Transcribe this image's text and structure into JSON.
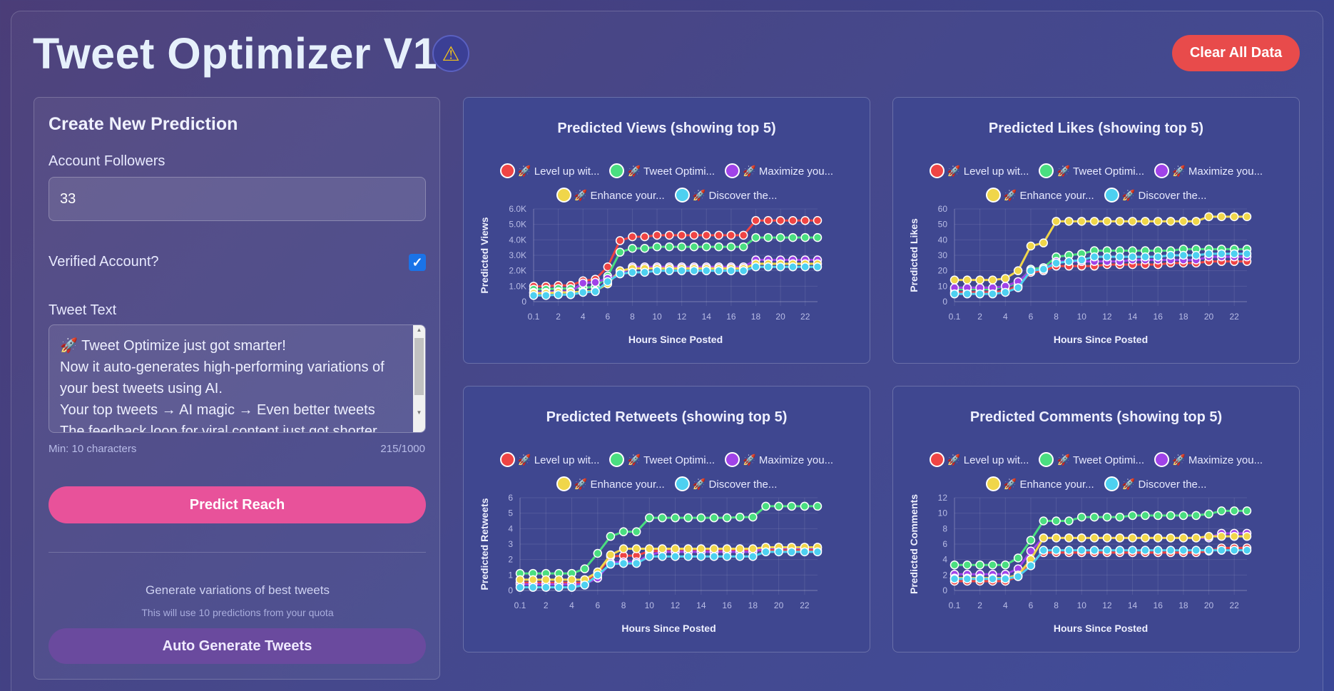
{
  "header": {
    "title": "Tweet Optimizer V1",
    "warning_icon": "warning-icon",
    "clear_label": "Clear All Data"
  },
  "form": {
    "heading": "Create New Prediction",
    "followers_label": "Account Followers",
    "followers_value": "33",
    "verified_label": "Verified Account?",
    "verified_checked": true,
    "tweet_label": "Tweet Text",
    "tweet_value": "🚀 Tweet Optimize just got smarter!\nNow it auto-generates high-performing variations of your best tweets using AI.\nYour top tweets → AI magic → Even better tweets\nThe feedback loop for viral content just got shorter.",
    "min_hint": "Min: 10 characters",
    "char_count": "215/1000",
    "predict_label": "Predict Reach",
    "generate_title": "Generate variations of best tweets",
    "generate_sub": "This will use 10 predictions from your quota",
    "auto_label": "Auto Generate Tweets"
  },
  "colors": {
    "red": "#ef4444",
    "green": "#4ade80",
    "purple": "#a043e8",
    "yellow": "#f0d64a",
    "cyan": "#4dd0f0",
    "predict": "#e8529a",
    "clear": "#e84b4b",
    "auto": "#6a4a9e"
  },
  "chart_data": [
    {
      "type": "line",
      "title": "Predicted Views (showing top 5)",
      "xlabel": "Hours Since Posted",
      "ylabel": "Predicted Views",
      "ylim": [
        0,
        6000
      ],
      "yticks": [
        "0",
        "1.0K",
        "2.0K",
        "3.0K",
        "4.0K",
        "5.0K",
        "6.0K"
      ],
      "categories": [
        "0.1",
        "1",
        "2",
        "3",
        "4",
        "5",
        "6",
        "7",
        "8",
        "9",
        "10",
        "11",
        "12",
        "13",
        "14",
        "15",
        "16",
        "17",
        "18",
        "19",
        "20",
        "21",
        "22",
        "23"
      ],
      "xtick_labels": [
        "0.1",
        "2",
        "4",
        "6",
        "8",
        "10",
        "12",
        "14",
        "16",
        "18",
        "20",
        "22"
      ],
      "grid": true,
      "legend": "top",
      "series": [
        {
          "name": "🚀 Level up wit...",
          "color": "#ef4444",
          "values": [
            1000,
            1000,
            1050,
            1050,
            1350,
            1450,
            2250,
            3950,
            4200,
            4200,
            4300,
            4300,
            4300,
            4300,
            4300,
            4300,
            4300,
            4300,
            5250,
            5250,
            5250,
            5250,
            5250,
            5250
          ]
        },
        {
          "name": "🚀 Tweet Optimi...",
          "color": "#4ade80",
          "values": [
            800,
            800,
            850,
            850,
            900,
            950,
            1650,
            3200,
            3450,
            3450,
            3550,
            3550,
            3550,
            3550,
            3550,
            3550,
            3550,
            3550,
            4150,
            4150,
            4150,
            4150,
            4150,
            4150
          ]
        },
        {
          "name": "🚀 Maximize you...",
          "color": "#a043e8",
          "values": [
            600,
            600,
            650,
            650,
            1200,
            1250,
            1500,
            1800,
            2250,
            2250,
            2250,
            2250,
            2250,
            2250,
            2250,
            2250,
            2250,
            2250,
            2700,
            2700,
            2700,
            2700,
            2700,
            2700
          ]
        },
        {
          "name": "🚀 Enhance your...",
          "color": "#f0d64a",
          "values": [
            550,
            550,
            600,
            600,
            650,
            700,
            1150,
            2000,
            2150,
            2150,
            2150,
            2150,
            2150,
            2150,
            2150,
            2150,
            2150,
            2150,
            2450,
            2450,
            2450,
            2450,
            2450,
            2450
          ]
        },
        {
          "name": "🚀 Discover the...",
          "color": "#4dd0f0",
          "values": [
            400,
            400,
            450,
            450,
            600,
            650,
            1300,
            1800,
            1900,
            1900,
            2000,
            2000,
            2000,
            2000,
            2000,
            2000,
            2000,
            2000,
            2250,
            2250,
            2250,
            2250,
            2250,
            2250
          ]
        }
      ]
    },
    {
      "type": "line",
      "title": "Predicted Likes (showing top 5)",
      "xlabel": "Hours Since Posted",
      "ylabel": "Predicted Likes",
      "ylim": [
        0,
        60
      ],
      "yticks": [
        "0",
        "10",
        "20",
        "30",
        "40",
        "50",
        "60"
      ],
      "categories": [
        "0.1",
        "1",
        "2",
        "3",
        "4",
        "5",
        "6",
        "7",
        "8",
        "9",
        "10",
        "11",
        "12",
        "13",
        "14",
        "15",
        "16",
        "17",
        "18",
        "19",
        "20",
        "21",
        "22",
        "23"
      ],
      "xtick_labels": [
        "0.1",
        "2",
        "4",
        "6",
        "8",
        "10",
        "12",
        "14",
        "16",
        "18",
        "20",
        "22"
      ],
      "grid": true,
      "legend": "top",
      "series": [
        {
          "name": "🚀 Level up wit...",
          "color": "#ef4444",
          "values": [
            6,
            6,
            6,
            6,
            7,
            10,
            19,
            20,
            23,
            23,
            23,
            23,
            24,
            24,
            24,
            24,
            24,
            25,
            25,
            25,
            26,
            26,
            26,
            26
          ]
        },
        {
          "name": "🚀 Tweet Optimi...",
          "color": "#4ade80",
          "values": [
            8,
            8,
            8,
            8,
            10,
            12,
            21,
            22,
            29,
            30,
            31,
            33,
            33,
            33,
            33,
            33,
            33,
            33,
            34,
            34,
            34,
            34,
            34,
            34
          ]
        },
        {
          "name": "🚀 Maximize you...",
          "color": "#a043e8",
          "values": [
            9,
            9,
            9,
            9,
            10,
            13,
            20,
            21,
            26,
            26,
            26,
            26,
            26,
            26,
            27,
            27,
            27,
            27,
            27,
            27,
            29,
            29,
            29,
            29
          ]
        },
        {
          "name": "🚀 Enhance your...",
          "color": "#f0d64a",
          "values": [
            14,
            14,
            14,
            14,
            15,
            20,
            36,
            38,
            52,
            52,
            52,
            52,
            52,
            52,
            52,
            52,
            52,
            52,
            52,
            52,
            55,
            55,
            55,
            55
          ]
        },
        {
          "name": "🚀 Discover the...",
          "color": "#4dd0f0",
          "values": [
            5,
            5,
            5,
            5,
            6,
            9,
            20,
            21,
            25,
            26,
            27,
            29,
            29,
            29,
            29,
            29,
            29,
            30,
            30,
            30,
            31,
            31,
            31,
            31
          ]
        }
      ]
    },
    {
      "type": "line",
      "title": "Predicted Retweets (showing top 5)",
      "xlabel": "Hours Since Posted",
      "ylabel": "Predicted Retweets",
      "ylim": [
        0,
        6
      ],
      "yticks": [
        "0",
        "1",
        "2",
        "3",
        "4",
        "5",
        "6"
      ],
      "categories": [
        "0.1",
        "1",
        "2",
        "3",
        "4",
        "5",
        "6",
        "7",
        "8",
        "9",
        "10",
        "11",
        "12",
        "13",
        "14",
        "15",
        "16",
        "17",
        "18",
        "19",
        "20",
        "21",
        "22",
        "23"
      ],
      "xtick_labels": [
        "0.1",
        "2",
        "4",
        "6",
        "8",
        "10",
        "12",
        "14",
        "16",
        "18",
        "20",
        "22"
      ],
      "grid": true,
      "legend": "top",
      "series": [
        {
          "name": "🚀 Level up wit...",
          "color": "#ef4444",
          "values": [
            0.5,
            0.5,
            0.5,
            0.5,
            0.5,
            0.5,
            1.1,
            2.2,
            2.25,
            2.25,
            2.55,
            2.55,
            2.55,
            2.55,
            2.55,
            2.55,
            2.55,
            2.6,
            2.6,
            2.6,
            2.6,
            2.6,
            2.6,
            2.6
          ]
        },
        {
          "name": "🚀 Tweet Optimi...",
          "color": "#4ade80",
          "values": [
            1.1,
            1.1,
            1.1,
            1.1,
            1.1,
            1.4,
            2.4,
            3.5,
            3.8,
            3.8,
            4.7,
            4.7,
            4.7,
            4.7,
            4.7,
            4.7,
            4.7,
            4.75,
            4.75,
            5.45,
            5.45,
            5.45,
            5.45,
            5.45
          ]
        },
        {
          "name": "🚀 Maximize you...",
          "color": "#a043e8",
          "values": [
            0.4,
            0.4,
            0.4,
            0.4,
            0.4,
            0.4,
            0.8,
            1.8,
            1.85,
            1.85,
            2.3,
            2.5,
            2.5,
            2.5,
            2.5,
            2.5,
            2.5,
            2.5,
            2.5,
            2.75,
            2.75,
            2.75,
            2.75,
            2.75
          ]
        },
        {
          "name": "🚀 Enhance your...",
          "color": "#f0d64a",
          "values": [
            0.7,
            0.7,
            0.7,
            0.7,
            0.7,
            0.7,
            1.2,
            2.3,
            2.7,
            2.7,
            2.7,
            2.7,
            2.7,
            2.7,
            2.7,
            2.7,
            2.7,
            2.7,
            2.7,
            2.8,
            2.8,
            2.8,
            2.8,
            2.8
          ]
        },
        {
          "name": "🚀 Discover the...",
          "color": "#4dd0f0",
          "values": [
            0.2,
            0.2,
            0.2,
            0.2,
            0.2,
            0.35,
            1.0,
            1.7,
            1.75,
            1.75,
            2.2,
            2.2,
            2.2,
            2.2,
            2.2,
            2.2,
            2.2,
            2.2,
            2.2,
            2.5,
            2.5,
            2.5,
            2.5,
            2.5
          ]
        }
      ]
    },
    {
      "type": "line",
      "title": "Predicted Comments (showing top 5)",
      "xlabel": "Hours Since Posted",
      "ylabel": "Predicted Comments",
      "ylim": [
        0,
        12
      ],
      "yticks": [
        "0",
        "2",
        "4",
        "6",
        "8",
        "10",
        "12"
      ],
      "categories": [
        "0.1",
        "1",
        "2",
        "3",
        "4",
        "5",
        "6",
        "7",
        "8",
        "9",
        "10",
        "11",
        "12",
        "13",
        "14",
        "15",
        "16",
        "17",
        "18",
        "19",
        "20",
        "21",
        "22",
        "23"
      ],
      "xtick_labels": [
        "0.1",
        "2",
        "4",
        "6",
        "8",
        "10",
        "12",
        "14",
        "16",
        "18",
        "20",
        "22"
      ],
      "grid": true,
      "legend": "top",
      "series": [
        {
          "name": "🚀 Level up wit...",
          "color": "#ef4444",
          "values": [
            1.2,
            1.2,
            1.2,
            1.2,
            1.2,
            1.8,
            3.6,
            4.9,
            4.9,
            4.9,
            4.9,
            4.9,
            4.9,
            4.9,
            4.9,
            4.9,
            4.9,
            4.9,
            4.9,
            4.9,
            5.1,
            5.5,
            5.5,
            5.5
          ]
        },
        {
          "name": "🚀 Tweet Optimi...",
          "color": "#4ade80",
          "values": [
            3.3,
            3.3,
            3.3,
            3.3,
            3.3,
            4.2,
            6.5,
            9.0,
            9.0,
            9.0,
            9.5,
            9.5,
            9.5,
            9.5,
            9.7,
            9.7,
            9.7,
            9.7,
            9.7,
            9.7,
            9.9,
            10.3,
            10.3,
            10.3
          ]
        },
        {
          "name": "🚀 Maximize you...",
          "color": "#a043e8",
          "values": [
            2.1,
            2.1,
            2.1,
            2.1,
            2.1,
            2.8,
            5.1,
            6.8,
            6.8,
            6.8,
            6.8,
            6.8,
            6.8,
            6.8,
            6.8,
            6.8,
            6.8,
            6.8,
            6.8,
            6.8,
            6.8,
            7.4,
            7.4,
            7.4
          ]
        },
        {
          "name": "🚀 Enhance your...",
          "color": "#f0d64a",
          "values": [
            1.6,
            1.6,
            1.6,
            1.6,
            1.6,
            2.0,
            4.0,
            6.8,
            6.8,
            6.8,
            6.8,
            6.8,
            6.8,
            6.8,
            6.8,
            6.8,
            6.8,
            6.8,
            6.8,
            6.8,
            7.0,
            7.0,
            7.0,
            7.0
          ]
        },
        {
          "name": "🚀 Discover the...",
          "color": "#4dd0f0",
          "values": [
            1.5,
            1.5,
            1.5,
            1.5,
            1.5,
            1.8,
            3.2,
            5.2,
            5.2,
            5.2,
            5.2,
            5.2,
            5.2,
            5.2,
            5.2,
            5.2,
            5.2,
            5.2,
            5.2,
            5.2,
            5.2,
            5.2,
            5.2,
            5.2
          ]
        }
      ]
    }
  ]
}
